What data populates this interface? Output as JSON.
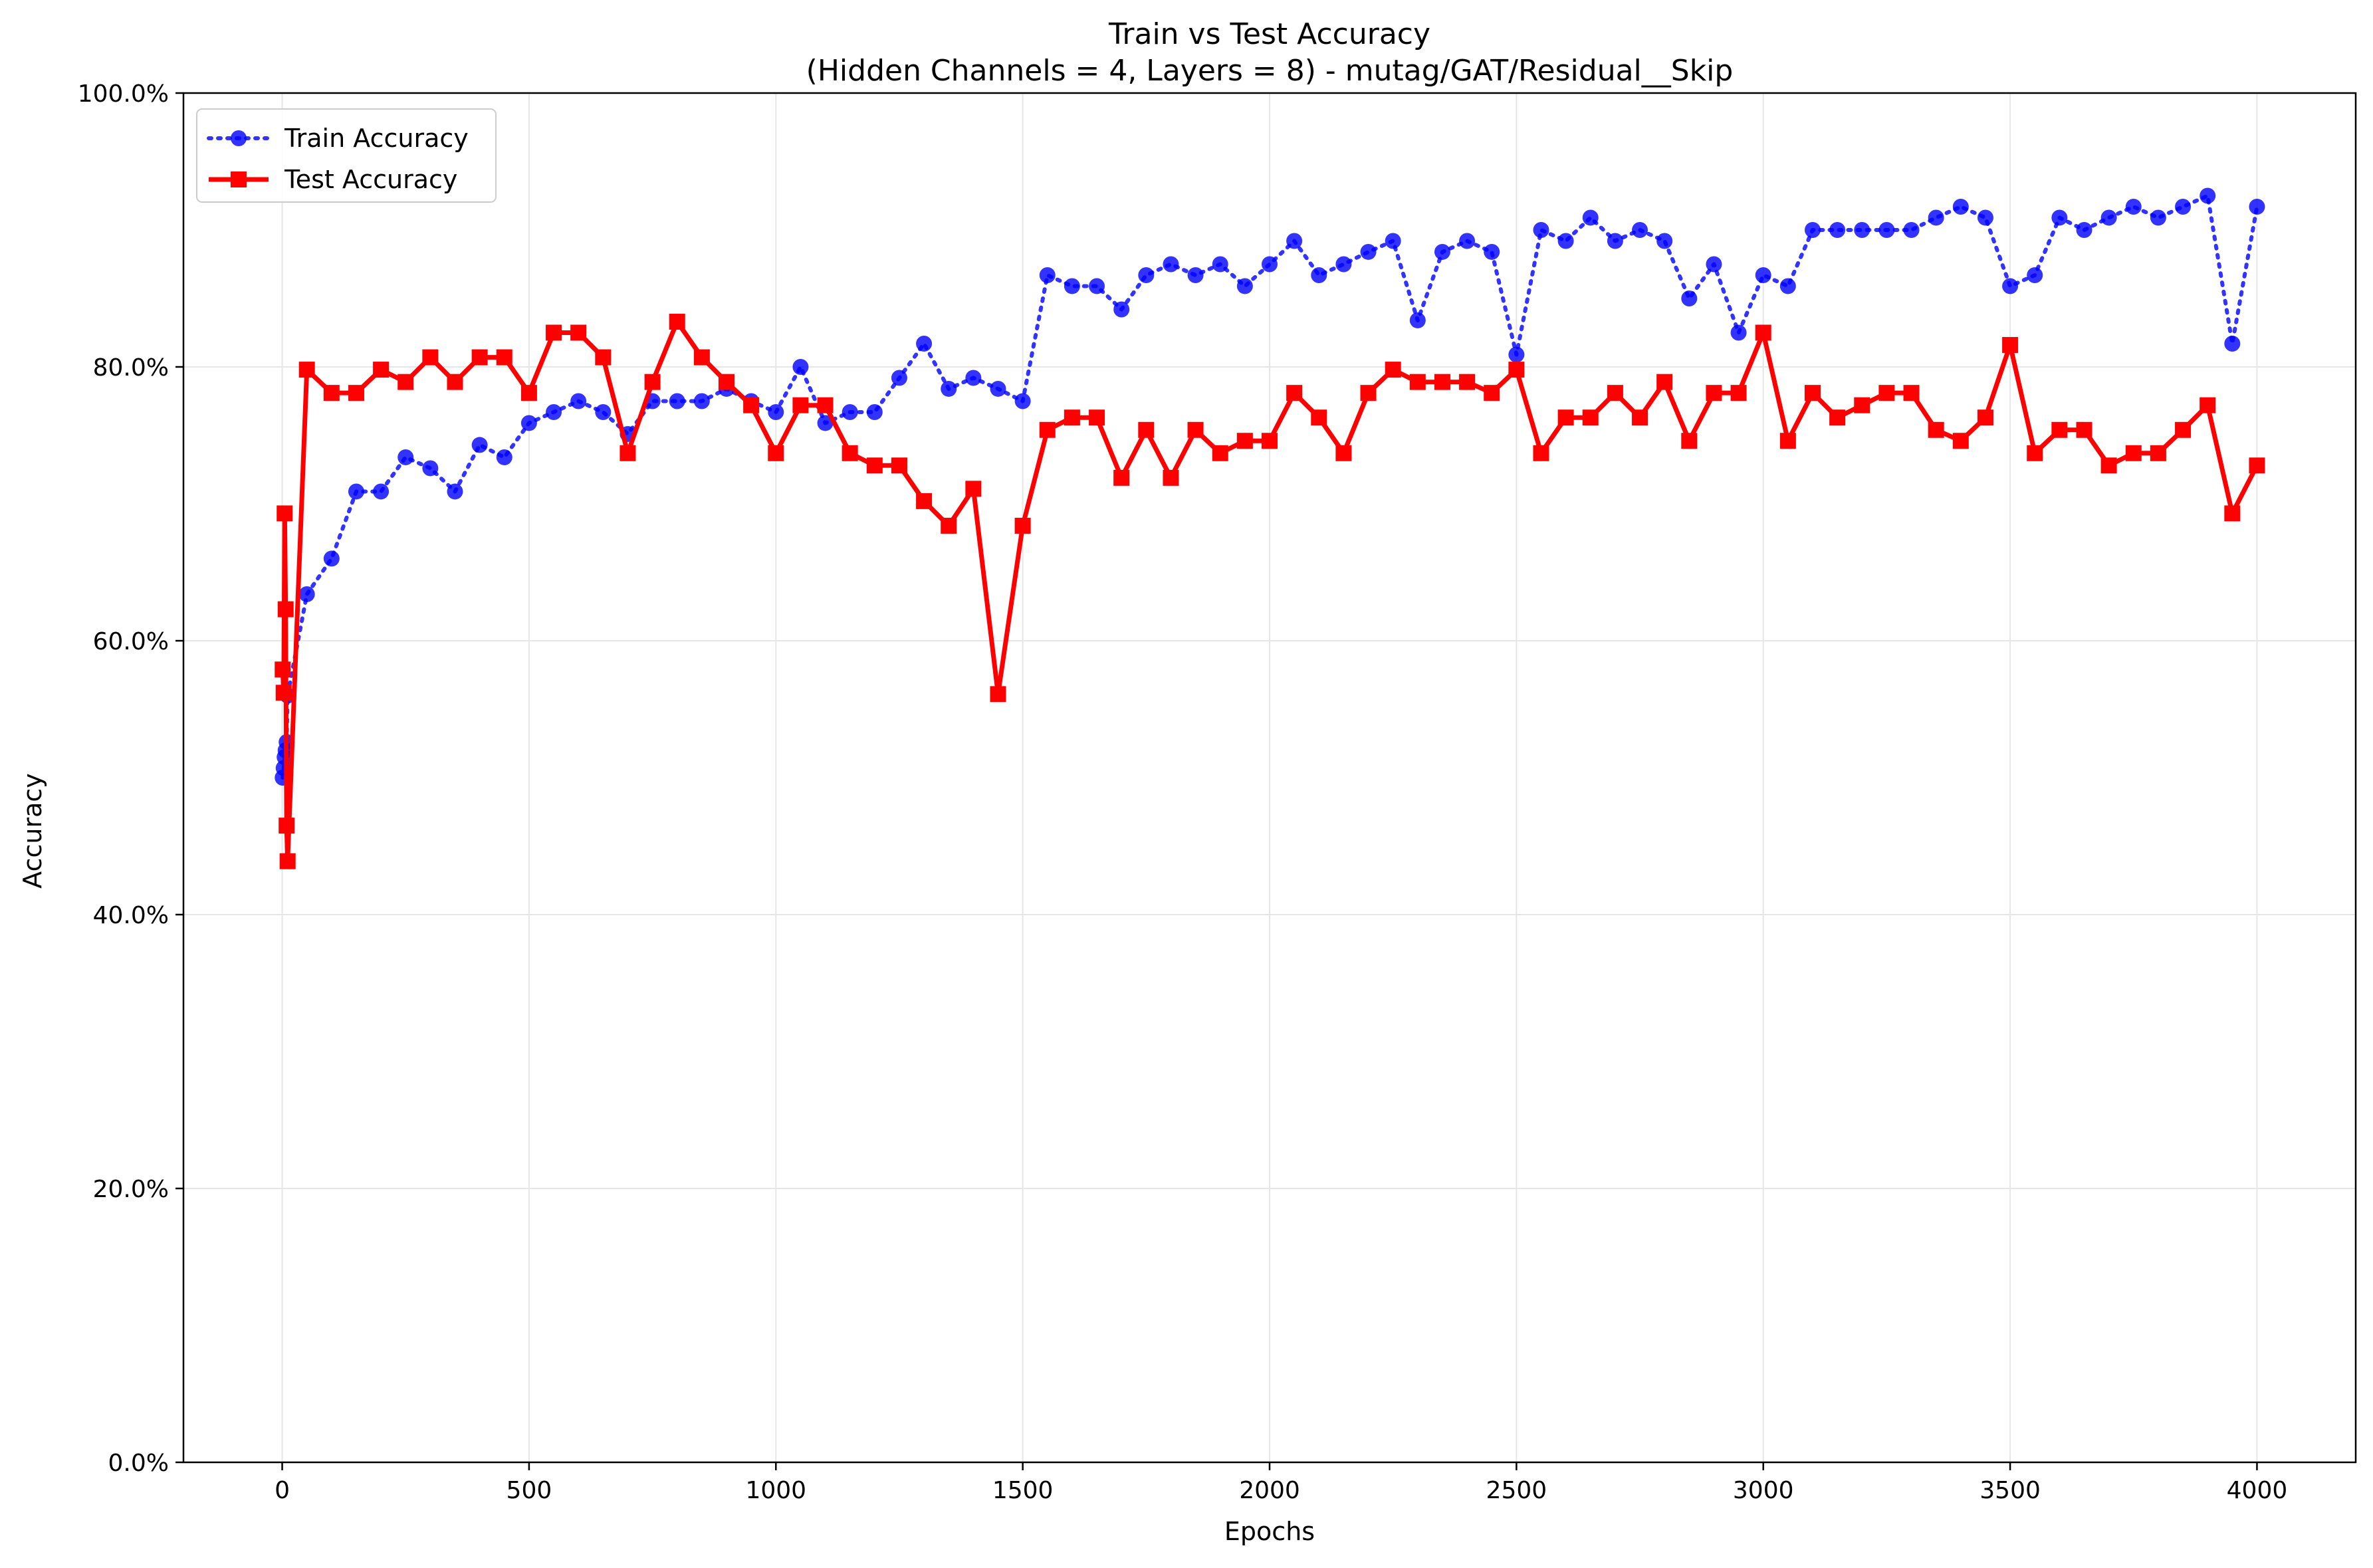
{
  "chart_data": {
    "type": "line",
    "title": "Train vs Test Accuracy",
    "subtitle": "(Hidden Channels = 4, Layers = 8) - mutag/GAT/Residual__Skip",
    "xlabel": "Epochs",
    "ylabel": "Accuracy",
    "xlim": [
      -200,
      4200
    ],
    "ylim": [
      0,
      1
    ],
    "x_ticks": [
      0,
      500,
      1000,
      1500,
      2000,
      2500,
      3000,
      3500,
      4000
    ],
    "x_tick_labels": [
      "0",
      "500",
      "1000",
      "1500",
      "2000",
      "2500",
      "3000",
      "3500",
      "4000"
    ],
    "y_ticks": [
      0,
      0.2,
      0.4,
      0.6,
      0.8,
      1.0
    ],
    "y_tick_labels": [
      "0.0%",
      "20.0%",
      "40.0%",
      "60.0%",
      "80.0%",
      "100.0%"
    ],
    "grid": true,
    "legend_position": "top-left",
    "series": [
      {
        "name": "Train Accuracy",
        "color": "#0000ff",
        "line_style": "dotted",
        "marker": "circle",
        "x": [
          1,
          3,
          5,
          7,
          9,
          11,
          50,
          100,
          150,
          200,
          250,
          300,
          350,
          400,
          450,
          500,
          550,
          600,
          650,
          700,
          750,
          800,
          850,
          900,
          950,
          1000,
          1050,
          1100,
          1150,
          1200,
          1250,
          1300,
          1350,
          1400,
          1450,
          1500,
          1550,
          1600,
          1650,
          1700,
          1750,
          1800,
          1850,
          1900,
          1950,
          2000,
          2050,
          2100,
          2150,
          2200,
          2250,
          2300,
          2350,
          2400,
          2450,
          2500,
          2550,
          2600,
          2650,
          2700,
          2750,
          2800,
          2850,
          2900,
          2950,
          3000,
          3050,
          3100,
          3150,
          3200,
          3250,
          3300,
          3350,
          3400,
          3450,
          3500,
          3550,
          3600,
          3650,
          3700,
          3750,
          3800,
          3850,
          3900,
          3950,
          4000
        ],
        "y": [
          0.5,
          0.507,
          0.515,
          0.52,
          0.526,
          0.56,
          0.634,
          0.66,
          0.709,
          0.709,
          0.734,
          0.726,
          0.709,
          0.743,
          0.734,
          0.759,
          0.767,
          0.775,
          0.767,
          0.751,
          0.775,
          0.775,
          0.775,
          0.784,
          0.775,
          0.767,
          0.8,
          0.759,
          0.767,
          0.767,
          0.792,
          0.817,
          0.784,
          0.792,
          0.784,
          0.775,
          0.867,
          0.859,
          0.859,
          0.842,
          0.867,
          0.875,
          0.867,
          0.875,
          0.859,
          0.875,
          0.892,
          0.867,
          0.875,
          0.884,
          0.892,
          0.834,
          0.884,
          0.892,
          0.884,
          0.809,
          0.9,
          0.892,
          0.909,
          0.892,
          0.9,
          0.892,
          0.85,
          0.875,
          0.825,
          0.867,
          0.859,
          0.9,
          0.9,
          0.9,
          0.9,
          0.9,
          0.909,
          0.917,
          0.909,
          0.859,
          0.867,
          0.909,
          0.9,
          0.909,
          0.917,
          0.909,
          0.917,
          0.925,
          0.817,
          0.917
        ]
      },
      {
        "name": "Test Accuracy",
        "color": "#ff0000",
        "line_style": "solid",
        "marker": "square",
        "x": [
          1,
          3,
          5,
          7,
          9,
          11,
          50,
          100,
          150,
          200,
          250,
          300,
          350,
          400,
          450,
          500,
          550,
          600,
          650,
          700,
          750,
          800,
          850,
          900,
          950,
          1000,
          1050,
          1100,
          1150,
          1200,
          1250,
          1300,
          1350,
          1400,
          1450,
          1500,
          1550,
          1600,
          1650,
          1700,
          1750,
          1800,
          1850,
          1900,
          1950,
          2000,
          2050,
          2100,
          2150,
          2200,
          2250,
          2300,
          2350,
          2400,
          2450,
          2500,
          2550,
          2600,
          2650,
          2700,
          2750,
          2800,
          2850,
          2900,
          2950,
          3000,
          3050,
          3100,
          3150,
          3200,
          3250,
          3300,
          3350,
          3400,
          3450,
          3500,
          3550,
          3600,
          3650,
          3700,
          3750,
          3800,
          3850,
          3900,
          3950,
          4000
        ],
        "y": [
          0.579,
          0.562,
          0.693,
          0.623,
          0.465,
          0.439,
          0.798,
          0.781,
          0.781,
          0.798,
          0.789,
          0.807,
          0.789,
          0.807,
          0.807,
          0.781,
          0.825,
          0.825,
          0.807,
          0.737,
          0.789,
          0.833,
          0.807,
          0.789,
          0.772,
          0.737,
          0.772,
          0.772,
          0.737,
          0.728,
          0.728,
          0.702,
          0.684,
          0.711,
          0.561,
          0.684,
          0.754,
          0.763,
          0.763,
          0.719,
          0.754,
          0.719,
          0.754,
          0.737,
          0.746,
          0.746,
          0.781,
          0.763,
          0.737,
          0.781,
          0.798,
          0.789,
          0.789,
          0.789,
          0.781,
          0.798,
          0.737,
          0.763,
          0.763,
          0.781,
          0.763,
          0.789,
          0.746,
          0.781,
          0.781,
          0.825,
          0.746,
          0.781,
          0.763,
          0.772,
          0.781,
          0.781,
          0.754,
          0.746,
          0.763,
          0.816,
          0.737,
          0.754,
          0.754,
          0.728,
          0.737,
          0.737,
          0.754,
          0.772,
          0.693,
          0.728
        ]
      }
    ]
  }
}
